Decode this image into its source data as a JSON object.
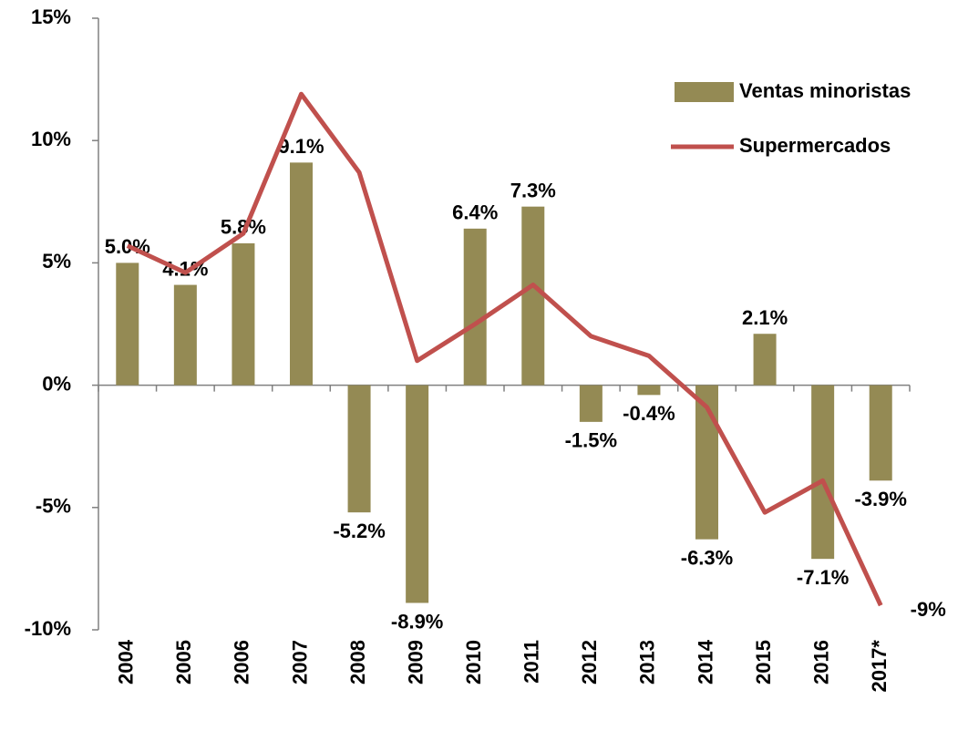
{
  "chart_data": {
    "type": "bar_line",
    "categories": [
      "2004",
      "2005",
      "2006",
      "2007",
      "2008",
      "2009",
      "2010",
      "2011",
      "2012",
      "2013",
      "2014",
      "2015",
      "2016",
      "2017*"
    ],
    "series": [
      {
        "name": "Ventas minoristas",
        "type": "bar",
        "color": "#948a54",
        "values": [
          5.0,
          4.1,
          5.8,
          9.1,
          -5.2,
          -8.9,
          6.4,
          7.3,
          -1.5,
          -0.4,
          -6.3,
          2.1,
          -7.1,
          -3.9
        ],
        "value_labels": [
          "5.0%",
          "4.1%",
          "5.8%",
          "9.1%",
          "-5.2%",
          "-8.9%",
          "6.4%",
          "7.3%",
          "-1.5%",
          "-0.4%",
          "-6.3%",
          "2.1%",
          "-7.1%",
          "-3.9%"
        ]
      },
      {
        "name": "Supermercados",
        "type": "line",
        "color": "#c0504d",
        "values": [
          5.7,
          4.6,
          6.2,
          11.9,
          8.7,
          1.0,
          2.5,
          4.1,
          2.0,
          1.2,
          -0.9,
          -5.2,
          -3.9,
          -9
        ],
        "value_labels": [
          null,
          null,
          null,
          null,
          null,
          null,
          null,
          null,
          null,
          null,
          null,
          null,
          null,
          "-9%"
        ]
      }
    ],
    "ylim": [
      -10,
      15
    ],
    "yticks": [
      {
        "value": -10,
        "label": "-10%"
      },
      {
        "value": -5,
        "label": "-5%"
      },
      {
        "value": 0,
        "label": "0%"
      },
      {
        "value": 5,
        "label": "5%"
      },
      {
        "value": 10,
        "label": "10%"
      },
      {
        "value": 15,
        "label": "15%"
      }
    ],
    "legend": "top-right"
  }
}
